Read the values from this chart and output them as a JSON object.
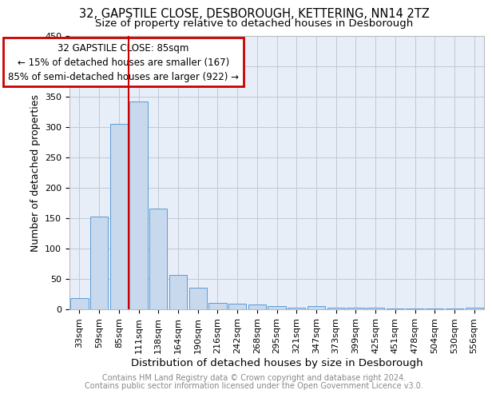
{
  "title_line1": "32, GAPSTILE CLOSE, DESBOROUGH, KETTERING, NN14 2TZ",
  "title_line2": "Size of property relative to detached houses in Desborough",
  "xlabel": "Distribution of detached houses by size in Desborough",
  "ylabel": "Number of detached properties",
  "footnote1": "Contains HM Land Registry data © Crown copyright and database right 2024.",
  "footnote2": "Contains public sector information licensed under the Open Government Licence v3.0.",
  "bar_labels": [
    "33sqm",
    "59sqm",
    "85sqm",
    "111sqm",
    "138sqm",
    "164sqm",
    "190sqm",
    "216sqm",
    "242sqm",
    "268sqm",
    "295sqm",
    "321sqm",
    "347sqm",
    "373sqm",
    "399sqm",
    "425sqm",
    "451sqm",
    "478sqm",
    "504sqm",
    "530sqm",
    "556sqm"
  ],
  "bar_values": [
    18,
    153,
    305,
    342,
    165,
    57,
    35,
    10,
    9,
    8,
    5,
    3,
    5,
    3,
    3,
    3,
    1,
    1,
    1,
    1,
    3
  ],
  "bar_color": "#c8d9ee",
  "bar_edge_color": "#5b9bd5",
  "vline_x": 2.5,
  "vline_color": "#cc0000",
  "annotation_text": "32 GAPSTILE CLOSE: 85sqm\n← 15% of detached houses are smaller (167)\n85% of semi-detached houses are larger (922) →",
  "annotation_box_color": "#cc0000",
  "ylim": [
    0,
    450
  ],
  "yticks": [
    0,
    50,
    100,
    150,
    200,
    250,
    300,
    350,
    400,
    450
  ],
  "grid_color": "#c0c8d8",
  "background_color": "#e8eef8",
  "title_fontsize": 10.5,
  "subtitle_fontsize": 9.5,
  "xlabel_fontsize": 9.5,
  "ylabel_fontsize": 9,
  "tick_fontsize": 8,
  "annot_fontsize": 8.5,
  "footnote_fontsize": 7
}
